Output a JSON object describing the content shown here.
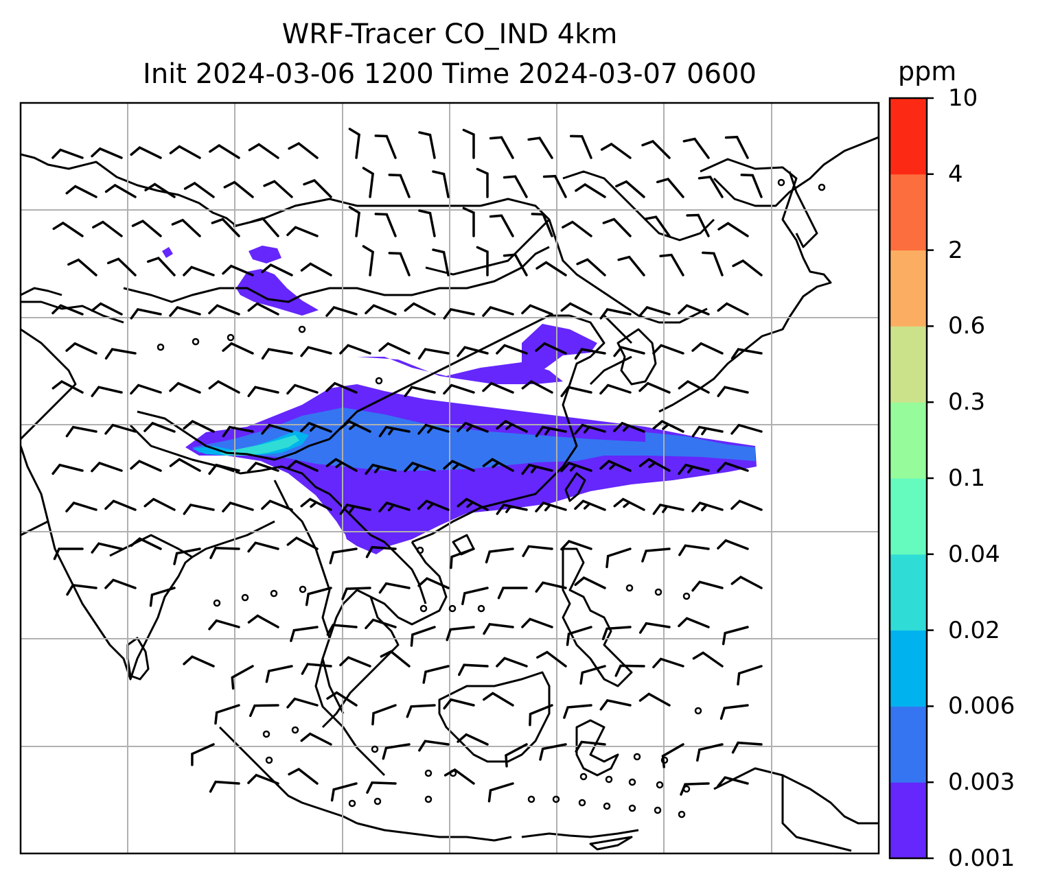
{
  "figure": {
    "title_line1": "WRF-Tracer CO_IND 4km",
    "title_line2": "Init 2024-03-06 1200 Time 2024-03-07 0600"
  },
  "colorbar": {
    "unit": "ppm",
    "levels": [
      "0.001",
      "0.003",
      "0.006",
      "0.02",
      "0.04",
      "0.1",
      "0.3",
      "0.6",
      "2",
      "4",
      "10"
    ],
    "colors": [
      "#6527fb",
      "#3575f1",
      "#00b2ee",
      "#30dcd6",
      "#66fbbe",
      "#96fb9a",
      "#cbe28b",
      "#fbae61",
      "#fc6e3e",
      "#fc2a15"
    ]
  },
  "map": {
    "gridlines": true,
    "coastline_color": "#000000",
    "grid_color": "#b0b0b0",
    "wind_barbs_color": "#000000",
    "plume_colors_present": [
      "#6527fb",
      "#3575f1",
      "#00b2ee",
      "#30dcd6"
    ]
  }
}
